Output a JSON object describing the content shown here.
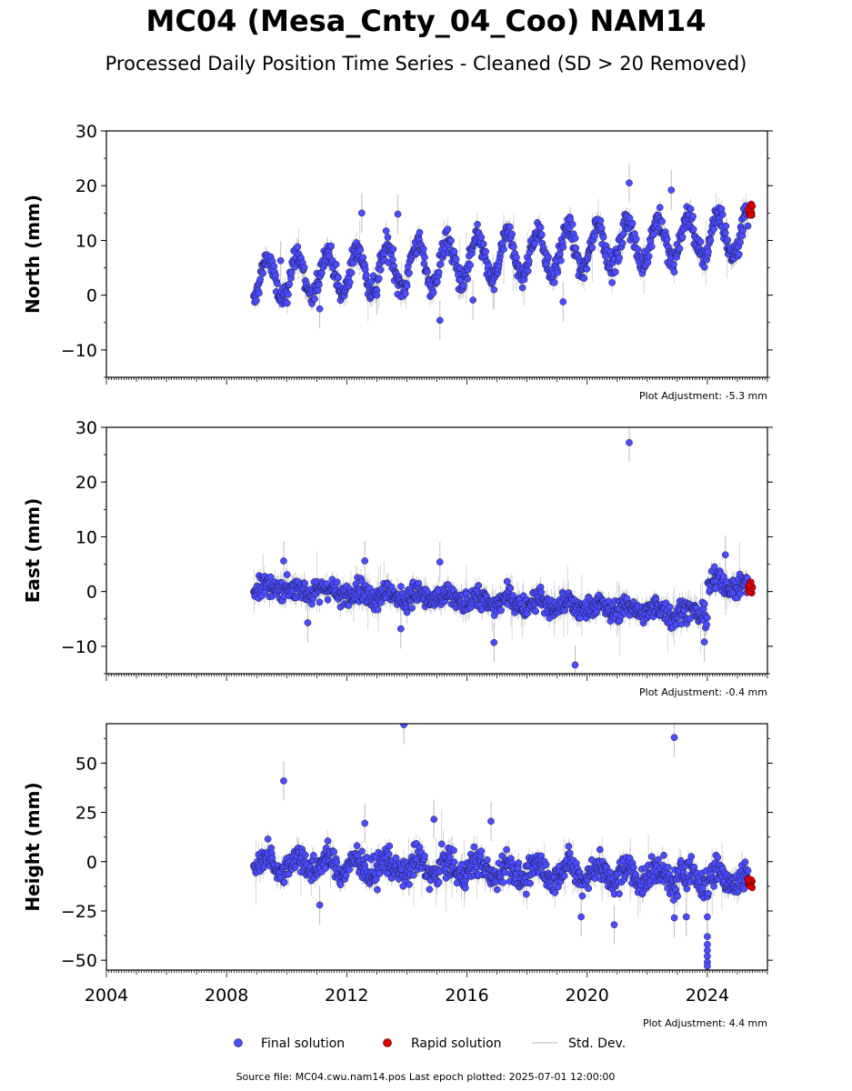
{
  "title": "MC04 (Mesa_Cnty_04_Coo) NAM14",
  "subtitle": "Processed Daily Position Time Series - Cleaned (SD > 20 Removed)",
  "footer": "Source file: MC04.cwu.nam14.pos  Last epoch plotted: 2025-07-01 12:00:00",
  "legend": [
    {
      "label": "Final solution",
      "color": "#4b4bff",
      "marker": "dot"
    },
    {
      "label": "Rapid solution",
      "color": "#e00000",
      "marker": "dot"
    },
    {
      "label": "Std. Dev.",
      "color": "#cccccc",
      "marker": "line"
    }
  ],
  "colors": {
    "final": "#4b4bff",
    "rapid": "#e00000",
    "stddev": "#bdbdbd",
    "outline": "#1a1a40"
  },
  "chart_data": [
    {
      "type": "scatter",
      "ylabel": "North (mm)",
      "xlim": [
        2004,
        2026
      ],
      "ylim": [
        -15,
        30
      ],
      "yticks": [
        -10,
        0,
        10,
        20,
        30
      ],
      "ytick_labels": [
        "−10",
        "0",
        "10",
        "20",
        "30"
      ],
      "adjustment": "Plot Adjustment: -5.3 mm",
      "series": {
        "start": 2008.9,
        "end": 2025.35,
        "trend_start": 2.5,
        "trend_end": 11.5,
        "amplitude": 4.0,
        "noise": 1.6,
        "outliers": [
          [
            2009.8,
            6.3
          ],
          [
            2011.1,
            -2.5
          ],
          [
            2013.0,
            0.0
          ],
          [
            2015.1,
            -4.6
          ],
          [
            2016.2,
            -0.9
          ],
          [
            2016.9,
            1.0
          ],
          [
            2019.2,
            -1.2
          ],
          [
            2021.4,
            20.5
          ],
          [
            2012.5,
            15.0
          ],
          [
            2013.7,
            14.8
          ],
          [
            2022.8,
            19.2
          ]
        ],
        "rapid": {
          "start": 2025.35,
          "end": 2025.5,
          "center": 15.5,
          "spread": 1.5
        }
      }
    },
    {
      "type": "scatter",
      "ylabel": "East (mm)",
      "xlim": [
        2004,
        2026
      ],
      "ylim": [
        -15,
        30
      ],
      "yticks": [
        -10,
        0,
        10,
        20,
        30
      ],
      "ytick_labels": [
        "−10",
        "0",
        "10",
        "20",
        "30"
      ],
      "adjustment": "Plot Adjustment: -0.4 mm",
      "series": {
        "start": 2008.9,
        "end": 2025.35,
        "trend_start": 0.8,
        "trend_end": -4.5,
        "amplitude": 0.8,
        "noise": 1.5,
        "step": {
          "at": 2024.0,
          "offset": 5.5
        },
        "outliers": [
          [
            2021.4,
            27.2
          ],
          [
            2019.6,
            -13.4
          ],
          [
            2016.9,
            -9.3
          ],
          [
            2023.9,
            -9.2
          ],
          [
            2012.6,
            5.6
          ],
          [
            2015.1,
            5.4
          ],
          [
            2009.9,
            5.6
          ],
          [
            2024.6,
            6.7
          ],
          [
            2013.8,
            -6.8
          ],
          [
            2010.7,
            -5.7
          ]
        ],
        "rapid": {
          "start": 2025.35,
          "end": 2025.5,
          "center": 0.5,
          "spread": 1.5
        }
      }
    },
    {
      "type": "scatter",
      "ylabel": "Height (mm)",
      "xlim": [
        2004,
        2026
      ],
      "ylim": [
        -55,
        70
      ],
      "yticks": [
        -50,
        -25,
        0,
        25,
        50
      ],
      "ytick_labels": [
        "−50",
        "−25",
        "0",
        "25",
        "50"
      ],
      "xticks": [
        2004,
        2008,
        2012,
        2016,
        2020,
        2024
      ],
      "xtick_labels": [
        "2004",
        "2008",
        "2012",
        "2016",
        "2020",
        "2024"
      ],
      "adjustment": "Plot Adjustment: 4.4 mm",
      "series": {
        "start": 2008.9,
        "end": 2025.35,
        "trend_start": 0.0,
        "trend_end": -9.0,
        "amplitude": 4.0,
        "noise": 5.5,
        "outliers": [
          [
            2009.9,
            41.0
          ],
          [
            2013.9,
            69.5
          ],
          [
            2022.9,
            63.0
          ],
          [
            2024.0,
            -38.0
          ],
          [
            2024.0,
            -42.0
          ],
          [
            2024.0,
            -45.0
          ],
          [
            2024.0,
            -48.0
          ],
          [
            2024.0,
            -51.0
          ],
          [
            2024.0,
            -53.0
          ],
          [
            2024.0,
            -28.0
          ],
          [
            2020.9,
            -32.0
          ],
          [
            2011.1,
            -22.0
          ],
          [
            2012.6,
            19.5
          ],
          [
            2014.9,
            21.5
          ],
          [
            2016.8,
            20.5
          ],
          [
            2019.8,
            -28.0
          ],
          [
            2022.9,
            -28.5
          ],
          [
            2023.3,
            -28.0
          ]
        ],
        "rapid": {
          "start": 2025.35,
          "end": 2025.5,
          "center": -11.0,
          "spread": 4.0
        }
      }
    }
  ]
}
